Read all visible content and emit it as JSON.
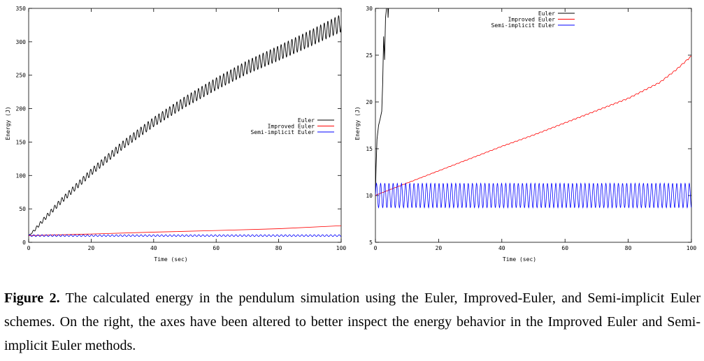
{
  "figure": {
    "caption_label": "Figure 2.",
    "caption_text": "The calculated energy in the pendulum simulation using the Euler, Improved-Euler, and Semi-implicit Euler schemes. On the right, the axes have been altered to better inspect the energy behavior in the Improved Euler and Semi-implicit Euler methods."
  },
  "chart_data": [
    {
      "type": "line",
      "xlabel": "Time (sec)",
      "ylabel": "Energy (J)",
      "xlim": [
        0,
        100
      ],
      "ylim": [
        0,
        350
      ],
      "xticks": [
        0,
        20,
        40,
        60,
        80,
        100
      ],
      "yticks": [
        0,
        50,
        100,
        150,
        200,
        250,
        300,
        350
      ],
      "grid": false,
      "legend_position": "right-middle",
      "series": [
        {
          "name": "Euler",
          "color": "#000000",
          "oscillating": true,
          "x": [
            0,
            1,
            2,
            5,
            10,
            20,
            30,
            40,
            50,
            60,
            70,
            80,
            90,
            100
          ],
          "values": [
            10,
            14,
            19,
            35,
            60,
            105,
            145,
            180,
            210,
            237,
            262,
            283,
            305,
            328
          ],
          "amplitude": [
            0,
            1,
            2,
            3,
            4,
            5,
            6,
            7,
            8,
            9,
            10,
            11,
            12,
            13
          ]
        },
        {
          "name": "Improved Euler",
          "color": "#ff0000",
          "x": [
            0,
            20,
            40,
            60,
            80,
            100
          ],
          "values": [
            10,
            12.4,
            15.2,
            17.6,
            20.3,
            24.8
          ]
        },
        {
          "name": "Semi-implicit Euler",
          "color": "#0000ff",
          "oscillating": true,
          "x": [
            0,
            100
          ],
          "values": [
            10,
            10
          ],
          "amplitude": [
            1.3,
            1.3
          ]
        }
      ]
    },
    {
      "type": "line",
      "xlabel": "Time (sec)",
      "ylabel": "Energy (J)",
      "xlim": [
        0,
        100
      ],
      "ylim": [
        5,
        30
      ],
      "xticks": [
        0,
        20,
        40,
        60,
        80,
        100
      ],
      "yticks": [
        5,
        10,
        15,
        20,
        25,
        30
      ],
      "grid": false,
      "legend_position": "top-right",
      "series": [
        {
          "name": "Euler",
          "color": "#000000",
          "x": [
            0,
            0.2,
            0.5,
            1,
            1.5,
            2,
            2.3,
            2.6,
            2.9,
            3.2,
            3.5,
            3.8,
            4.0,
            4.3
          ],
          "values": [
            10,
            13,
            16,
            17.5,
            18.2,
            19,
            22,
            27,
            24.5,
            29,
            30,
            32,
            29,
            31
          ]
        },
        {
          "name": "Improved Euler",
          "color": "#ff0000",
          "x": [
            0,
            10,
            20,
            30,
            40,
            50,
            60,
            70,
            80,
            90,
            95,
            100
          ],
          "values": [
            10,
            11.3,
            12.6,
            13.9,
            15.2,
            16.4,
            17.7,
            19.0,
            20.3,
            22.0,
            23.3,
            24.8
          ]
        },
        {
          "name": "Semi-implicit Euler",
          "color": "#0000ff",
          "oscillating": true,
          "x": [
            0,
            100
          ],
          "values": [
            10,
            10
          ],
          "amplitude": [
            1.3,
            1.3
          ]
        }
      ]
    }
  ]
}
